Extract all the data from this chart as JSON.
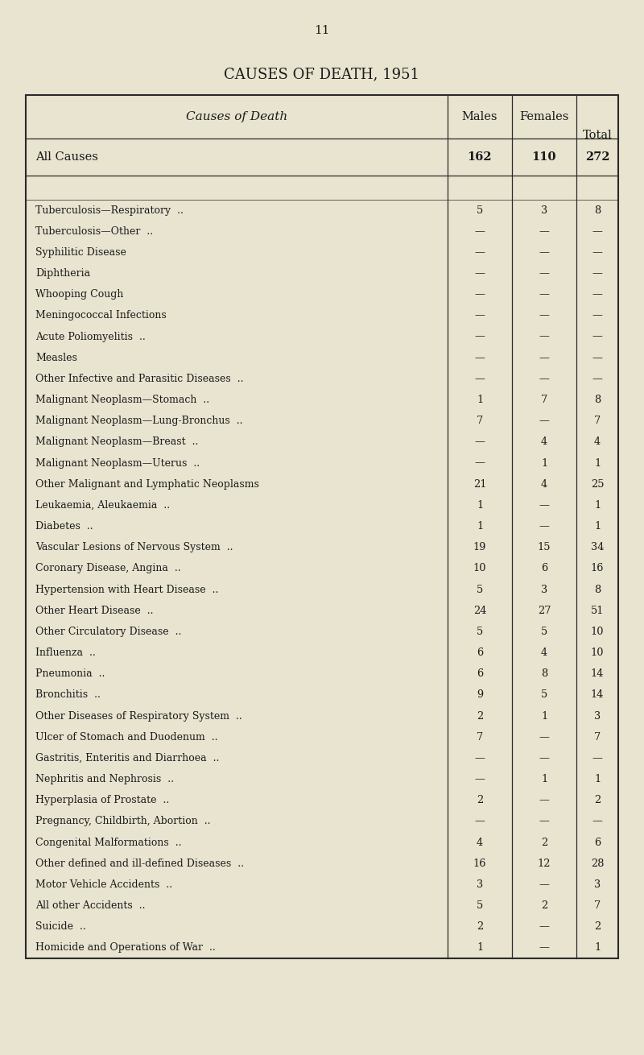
{
  "page_number": "11",
  "title": "CAUSES OF DEATH, 1951",
  "header_col": "Causes of Death",
  "header_males": "Males",
  "header_females": "Females",
  "header_total": "Total",
  "all_causes": [
    "All Causes",
    "162",
    "110",
    "272"
  ],
  "rows": [
    [
      "Tuberculosis—Respiratory  ..",
      "5",
      "3",
      "8"
    ],
    [
      "Tuberculosis—Other  ..",
      "—",
      "—",
      "—"
    ],
    [
      "Syphilitic Disease",
      "—",
      "—",
      "—"
    ],
    [
      "Diphtheria",
      "—",
      "—",
      "—"
    ],
    [
      "Whooping Cough",
      "—",
      "—",
      "—"
    ],
    [
      "Meningococcal Infections",
      "—",
      "—",
      "—"
    ],
    [
      "Acute Poliomyelitis  ..",
      "—",
      "—",
      "—"
    ],
    [
      "Measles",
      "—",
      "—",
      "—"
    ],
    [
      "Other Infective and Parasitic Diseases  ..",
      "—",
      "—",
      "—"
    ],
    [
      "Malignant Neoplasm—Stomach  ..",
      "1",
      "7",
      "8"
    ],
    [
      "Malignant Neoplasm—Lung-Bronchus  ..",
      "7",
      "—",
      "7"
    ],
    [
      "Malignant Neoplasm—Breast  ..",
      "—",
      "4",
      "4"
    ],
    [
      "Malignant Neoplasm—Uterus  ..",
      "—",
      "1",
      "1"
    ],
    [
      "Other Malignant and Lymphatic Neoplasms",
      "21",
      "4",
      "25"
    ],
    [
      "Leukaemia, Aleukaemia  ..",
      "1",
      "—",
      "1"
    ],
    [
      "Diabetes  ..",
      "1",
      "—",
      "1"
    ],
    [
      "Vascular Lesions of Nervous System  ..",
      "19",
      "15",
      "34"
    ],
    [
      "Coronary Disease, Angina  ..",
      "10",
      "6",
      "16"
    ],
    [
      "Hypertension with Heart Disease  ..",
      "5",
      "3",
      "8"
    ],
    [
      "Other Heart Disease  ..",
      "24",
      "27",
      "51"
    ],
    [
      "Other Circulatory Disease  ..",
      "5",
      "5",
      "10"
    ],
    [
      "Influenza  ..",
      "6",
      "4",
      "10"
    ],
    [
      "Pneumonia  ..",
      "6",
      "8",
      "14"
    ],
    [
      "Bronchitis  ..",
      "9",
      "5",
      "14"
    ],
    [
      "Other Diseases of Respiratory System  ..",
      "2",
      "1",
      "3"
    ],
    [
      "Ulcer of Stomach and Duodenum  ..",
      "7",
      "—",
      "7"
    ],
    [
      "Gastritis, Enteritis and Diarrhoea  ..",
      "—",
      "—",
      "—"
    ],
    [
      "Nephritis and Nephrosis  ..",
      "—",
      "1",
      "1"
    ],
    [
      "Hyperplasia of Prostate  ..",
      "2",
      "—",
      "2"
    ],
    [
      "Pregnancy, Childbirth, Abortion  ..",
      "—",
      "—",
      "—"
    ],
    [
      "Congenital Malformations  ..",
      "4",
      "2",
      "6"
    ],
    [
      "Other defined and ill-defined Diseases  ..",
      "16",
      "12",
      "28"
    ],
    [
      "Motor Vehicle Accidents  ..",
      "3",
      "—",
      "3"
    ],
    [
      "All other Accidents  ..",
      "5",
      "2",
      "7"
    ],
    [
      "Suicide  ..",
      "2",
      "—",
      "2"
    ],
    [
      "Homicide and Operations of War  ..",
      "1",
      "—",
      "1"
    ]
  ],
  "bg_color": "#e8e4d0",
  "table_bg": "#e8e4d0",
  "text_color": "#1a1a1a",
  "border_color": "#2a2a2a",
  "figsize": [
    8.0,
    13.1
  ],
  "dpi": 100
}
